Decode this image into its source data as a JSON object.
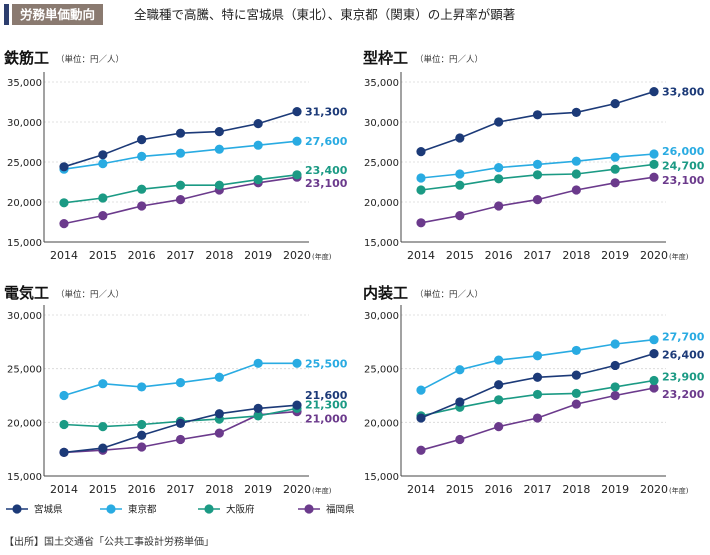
{
  "header": {
    "tag": "労務単価動向",
    "headline": "全職種で高騰、特に宮城県（東北）、東京都（関東）の上昇率が顕著"
  },
  "unit_label": "（単位：円／人）",
  "year_unit": "(年度)",
  "source": "【出所】国土交通省「公共工事設計労務単価」",
  "legend": [
    {
      "name": "宮城県",
      "color": "#1c3a78"
    },
    {
      "name": "東京都",
      "color": "#29abe2"
    },
    {
      "name": "大阪府",
      "color": "#1b9a84"
    },
    {
      "name": "福岡県",
      "color": "#6b3a8c"
    }
  ],
  "chart_data": [
    {
      "type": "line",
      "title": "鉄筋工",
      "x": [
        "2014",
        "2015",
        "2016",
        "2017",
        "2018",
        "2019",
        "2020"
      ],
      "ylim": [
        15000,
        35000
      ],
      "yticks": [
        "15,000",
        "20,000",
        "25,000",
        "30,000",
        "35,000"
      ],
      "series": [
        {
          "name": "宮城県",
          "values": [
            24400,
            25900,
            27800,
            28600,
            28800,
            29800,
            31300
          ],
          "end_label": "31,300"
        },
        {
          "name": "東京都",
          "values": [
            24100,
            24800,
            25700,
            26100,
            26600,
            27100,
            27600
          ],
          "end_label": "27,600"
        },
        {
          "name": "大阪府",
          "values": [
            19900,
            20500,
            21600,
            22100,
            22100,
            22800,
            23400
          ],
          "end_label": "23,400"
        },
        {
          "name": "福岡県",
          "values": [
            17300,
            18300,
            19500,
            20300,
            21500,
            22400,
            23100
          ],
          "end_label": "23,100"
        }
      ]
    },
    {
      "type": "line",
      "title": "型枠工",
      "x": [
        "2014",
        "2015",
        "2016",
        "2017",
        "2018",
        "2019",
        "2020"
      ],
      "ylim": [
        15000,
        35000
      ],
      "yticks": [
        "15,000",
        "20,000",
        "25,000",
        "30,000",
        "35,000"
      ],
      "series": [
        {
          "name": "宮城県",
          "values": [
            26300,
            28000,
            30000,
            30900,
            31200,
            32300,
            33800
          ],
          "end_label": "33,800"
        },
        {
          "name": "東京都",
          "values": [
            23000,
            23500,
            24300,
            24700,
            25100,
            25600,
            26000
          ],
          "end_label": "26,000"
        },
        {
          "name": "大阪府",
          "values": [
            21500,
            22100,
            22900,
            23400,
            23500,
            24100,
            24700
          ],
          "end_label": "24,700"
        },
        {
          "name": "福岡県",
          "values": [
            17400,
            18300,
            19500,
            20300,
            21500,
            22400,
            23100
          ],
          "end_label": "23,100"
        }
      ]
    },
    {
      "type": "line",
      "title": "電気工",
      "x": [
        "2014",
        "2015",
        "2016",
        "2017",
        "2018",
        "2019",
        "2020"
      ],
      "ylim": [
        15000,
        30000
      ],
      "yticks": [
        "15,000",
        "20,000",
        "25,000",
        "30,000"
      ],
      "series": [
        {
          "name": "宮城県",
          "values": [
            17200,
            17600,
            18800,
            19900,
            20800,
            21300,
            21600
          ],
          "end_label": "21,600"
        },
        {
          "name": "東京都",
          "values": [
            22500,
            23600,
            23300,
            23700,
            24200,
            25500,
            25500
          ],
          "end_label": "25,500"
        },
        {
          "name": "大阪府",
          "values": [
            19800,
            19600,
            19800,
            20100,
            20300,
            20600,
            21300
          ],
          "end_label": "21,300"
        },
        {
          "name": "福岡県",
          "values": [
            17200,
            17400,
            17700,
            18400,
            19000,
            20700,
            21000
          ],
          "end_label": "21,000"
        }
      ]
    },
    {
      "type": "line",
      "title": "内装工",
      "x": [
        "2014",
        "2015",
        "2016",
        "2017",
        "2018",
        "2019",
        "2020"
      ],
      "ylim": [
        15000,
        30000
      ],
      "yticks": [
        "15,000",
        "20,000",
        "25,000",
        "30,000"
      ],
      "series": [
        {
          "name": "宮城県",
          "values": [
            20400,
            21900,
            23500,
            24200,
            24400,
            25300,
            26400
          ],
          "end_label": "26,400"
        },
        {
          "name": "東京都",
          "values": [
            23000,
            24900,
            25800,
            26200,
            26700,
            27300,
            27700
          ],
          "end_label": "27,700"
        },
        {
          "name": "大阪府",
          "values": [
            20600,
            21400,
            22100,
            22600,
            22700,
            23300,
            23900
          ],
          "end_label": "23,900"
        },
        {
          "name": "福岡県",
          "values": [
            17400,
            18400,
            19600,
            20400,
            21700,
            22500,
            23200
          ],
          "end_label": "23,200"
        }
      ]
    }
  ]
}
